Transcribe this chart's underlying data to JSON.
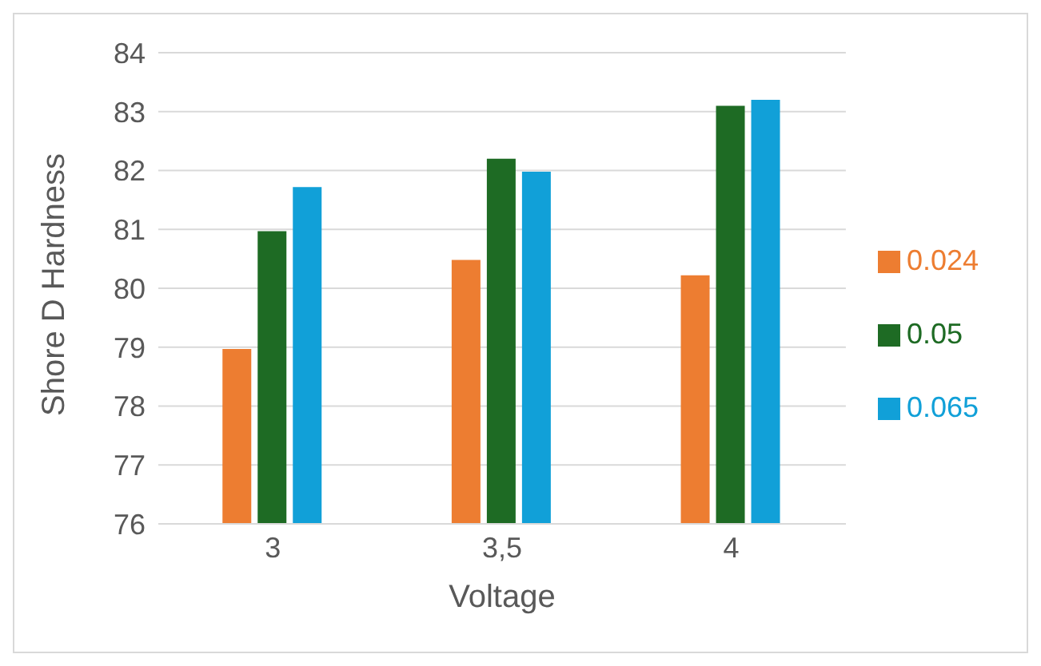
{
  "chart_data": {
    "type": "bar",
    "xlabel": "Voltage",
    "ylabel": "Shore D Hardness",
    "categories": [
      "3",
      "3,5",
      "4"
    ],
    "series": [
      {
        "name": "0.024",
        "color": "#ed7d31",
        "values": [
          78.97,
          80.48,
          80.22
        ]
      },
      {
        "name": "0.05",
        "color": "#1e6b24",
        "values": [
          80.97,
          82.2,
          83.1
        ]
      },
      {
        "name": "0.065",
        "color": "#11a0d8",
        "values": [
          81.72,
          81.98,
          83.2
        ]
      }
    ],
    "ylim": [
      76,
      84
    ],
    "yticks": [
      76,
      77,
      78,
      79,
      80,
      81,
      82,
      83,
      84
    ],
    "grid": "y",
    "legend": "right"
  }
}
